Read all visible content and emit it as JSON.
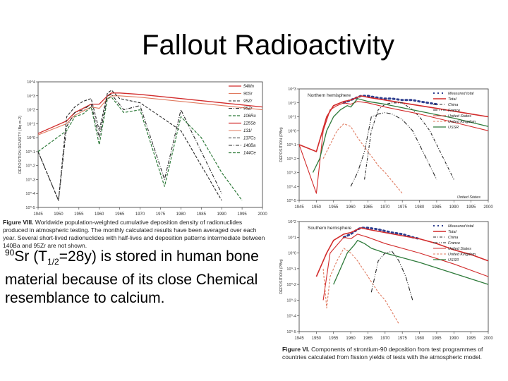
{
  "slide": {
    "title": "Fallout Radioactivity",
    "body_iso": "90",
    "body_p1": "Sr (T",
    "body_sub": "1/2",
    "body_p2": "=28y) is stored in human bone material because of its close Chemical resemblance to calcium."
  },
  "colors": {
    "red": "#d22b2b",
    "dark": "#2a2a2a",
    "green": "#2e7a3a",
    "salmon": "#e07a5f",
    "blue": "#2f3f8f"
  },
  "chart_data": [
    {
      "type": "line",
      "ylabel": "DEPOSITION DENSITY (Bq m-2)",
      "x_ticks": [
        "1945",
        "1950",
        "1955",
        "1960",
        "1965",
        "1970",
        "1975",
        "1980",
        "1985",
        "1990",
        "1995",
        "2000"
      ],
      "y_ticks": [
        "10^4",
        "10^3",
        "10^2",
        "10^1",
        "10^0",
        "10^-1",
        "10^-2",
        "10^-3",
        "10^-4",
        "10^-5"
      ],
      "legend": [
        "54Mn",
        "90Sr",
        "95Zr",
        "95Zr",
        "106Ru",
        "125Sb",
        "131I",
        "137Cs",
        "140Ba",
        "144Ce"
      ],
      "caption_label": "Figure VIII.",
      "caption_text": "Worldwide population-weighted cumulative deposition density of radionuclides produced in atmospheric testing. The monthly calculated results have been averaged over each year. Several short-lived radionuclides with half-lives and deposition patterns intermediate between 140Ba and 95Zr are not shown.",
      "series": [
        {
          "x": [
            1945,
            1952,
            1954,
            1956,
            1958,
            1960,
            1962,
            1963,
            1965,
            1970,
            1980,
            1990,
            2000
          ],
          "y": [
            0.3,
            1.2,
            1.8,
            2.1,
            2.4,
            2.4,
            3.0,
            3.2,
            3.2,
            3.1,
            2.8,
            2.5,
            2.2
          ]
        },
        {
          "x": [
            1945,
            1952,
            1954,
            1956,
            1958,
            1960,
            1962,
            1963,
            1965,
            1970,
            1980,
            1990,
            2000
          ],
          "y": [
            0.2,
            1.0,
            1.6,
            1.9,
            2.2,
            2.1,
            2.8,
            3.0,
            3.0,
            2.9,
            2.6,
            2.3,
            2.0
          ]
        },
        {
          "x": [
            1945,
            1950,
            1952,
            1954,
            1956,
            1958,
            1960,
            1962,
            1963,
            1965,
            1970,
            1975,
            1980,
            1990
          ],
          "y": [
            -1,
            -4.5,
            1.5,
            2.2,
            2.6,
            2.8,
            0.5,
            3.2,
            3.4,
            2.8,
            2.5,
            1.5,
            0.5,
            -4.5
          ]
        },
        {
          "x": [
            1945,
            1950,
            1952,
            1954,
            1956,
            1958,
            1960,
            1962,
            1963,
            1966,
            1970,
            1976,
            1980,
            1985,
            1990
          ],
          "y": [
            -1,
            -4.5,
            0.8,
            1.8,
            2.0,
            2.4,
            0.0,
            3.0,
            3.1,
            2.0,
            2.3,
            -3.0,
            2.0,
            -1.0,
            -4.0
          ]
        },
        {
          "x": [
            1945,
            1952,
            1954,
            1956,
            1958,
            1960,
            1962,
            1963,
            1966,
            1970,
            1976,
            1980,
            1985,
            1990,
            1995
          ],
          "y": [
            -1,
            0.5,
            1.5,
            1.7,
            2.2,
            -0.5,
            2.8,
            2.9,
            1.8,
            2.0,
            -3.5,
            1.5,
            0.0,
            -2.5,
            -4.5
          ]
        }
      ]
    },
    {
      "type": "line",
      "panel": "Northern hemisphere",
      "ylabel": "DEPOSITION (PBq)",
      "x_ticks": [
        "1945",
        "1950",
        "1955",
        "1960",
        "1965",
        "1970",
        "1975",
        "1980",
        "1985",
        "1990",
        "1995",
        "2000"
      ],
      "y_ticks": [
        "10^3",
        "10^2",
        "10^1",
        "10^0",
        "10^-1",
        "10^-2",
        "10^-3",
        "10^-4",
        "10^-5"
      ],
      "legend": [
        "Measured total",
        "Total",
        "China",
        "France",
        "United States",
        "United Kingdom",
        "USSR"
      ],
      "annotation": "United States",
      "series": [
        {
          "name": "Measured total",
          "x": [
            1958,
            1960,
            1962,
            1963,
            1965,
            1967,
            1970,
            1972,
            1975,
            1978,
            1980,
            1985
          ],
          "y": [
            2.0,
            2.2,
            2.4,
            2.5,
            2.5,
            2.4,
            2.3,
            2.3,
            2.2,
            2.2,
            2.1,
            1.9
          ]
        },
        {
          "name": "Total",
          "x": [
            1945,
            1950,
            1953,
            1955,
            1958,
            1960,
            1962,
            1963,
            1965,
            1970,
            1975,
            1980,
            1985,
            1990,
            1995,
            2000
          ],
          "y": [
            -1,
            -1.5,
            1.0,
            1.8,
            2.1,
            2.2,
            2.4,
            2.5,
            2.4,
            2.2,
            2.0,
            1.8,
            1.6,
            1.4,
            1.2,
            1.0
          ]
        },
        {
          "name": "China",
          "x": [
            1964,
            1966,
            1968,
            1970,
            1972,
            1975,
            1978,
            1980,
            1983,
            1986,
            1990
          ],
          "y": [
            -3.5,
            0.0,
            1.5,
            1.9,
            2.0,
            2.0,
            1.5,
            1.0,
            0.0,
            -1.5,
            -3.5
          ]
        },
        {
          "name": "France",
          "x": [
            1960,
            1962,
            1964,
            1966,
            1968,
            1970,
            1972,
            1975,
            1978,
            1980,
            1985
          ],
          "y": [
            -4.0,
            -3.0,
            -1.5,
            1.0,
            1.2,
            1.3,
            1.2,
            0.8,
            0.0,
            -1.0,
            -3.5
          ]
        },
        {
          "name": "United States",
          "x": [
            1945,
            1950,
            1952,
            1954,
            1956,
            1958,
            1960,
            1962,
            1965,
            1970,
            1980,
            1990,
            2000
          ],
          "y": [
            -1.0,
            -4.5,
            0.0,
            1.5,
            1.8,
            2.0,
            1.9,
            2.1,
            2.0,
            1.7,
            1.2,
            0.6,
            0.0
          ]
        },
        {
          "name": "United Kingdom",
          "x": [
            1952,
            1954,
            1956,
            1958,
            1960,
            1962,
            1965,
            1968,
            1970,
            1975
          ],
          "y": [
            -2.0,
            -1.0,
            0.0,
            0.5,
            0.3,
            -0.5,
            -1.5,
            -2.5,
            -3.0,
            -4.5
          ]
        },
        {
          "name": "USSR",
          "x": [
            1949,
            1951,
            1953,
            1955,
            1957,
            1959,
            1960,
            1962,
            1965,
            1970,
            1980,
            1990,
            2000
          ],
          "y": [
            -3.0,
            -2.0,
            0.0,
            1.0,
            1.5,
            1.8,
            1.7,
            2.3,
            2.1,
            1.9,
            1.4,
            0.9,
            0.3
          ]
        }
      ]
    },
    {
      "type": "line",
      "panel": "Southern hemisphere",
      "ylabel": "DEPOSITION (PBq)",
      "x_ticks": [
        "1945",
        "1950",
        "1955",
        "1960",
        "1965",
        "1970",
        "1975",
        "1980",
        "1985",
        "1990",
        "1995",
        "2000"
      ],
      "y_ticks": [
        "10^2",
        "10^1",
        "10^0",
        "10^-1",
        "10^-2",
        "10^-3",
        "10^-4",
        "10^-5"
      ],
      "legend": [
        "Measured total",
        "Total",
        "China",
        "France",
        "United States",
        "United Kingdom",
        "USSR"
      ],
      "caption_label": "Figure VI.",
      "caption_text": "Components of strontium-90 deposition from test programmes of countries calculated from fission yields of tests with the atmospheric model.",
      "series": [
        {
          "name": "Measured total",
          "x": [
            1958,
            1960,
            1962,
            1963,
            1965,
            1968,
            1970,
            1972,
            1975,
            1978,
            1980
          ],
          "y": [
            1.0,
            1.2,
            1.5,
            1.6,
            1.6,
            1.5,
            1.4,
            1.3,
            1.2,
            1.0,
            0.9
          ]
        },
        {
          "name": "Total",
          "x": [
            1950,
            1953,
            1955,
            1958,
            1960,
            1962,
            1963,
            1965,
            1970,
            1975,
            1980,
            1985,
            1990,
            1995,
            2000
          ],
          "y": [
            -1.5,
            0.0,
            0.8,
            1.2,
            1.3,
            1.5,
            1.6,
            1.5,
            1.3,
            1.1,
            0.9,
            0.6,
            0.2,
            -0.1,
            -0.5
          ]
        },
        {
          "name": "United States",
          "x": [
            1952,
            1954,
            1956,
            1958,
            1960,
            1962,
            1965,
            1970,
            1980,
            1990,
            2000
          ],
          "y": [
            -3.0,
            0.0,
            0.5,
            1.0,
            0.9,
            1.2,
            1.0,
            0.6,
            0.0,
            -0.7,
            -1.5
          ]
        },
        {
          "name": "United Kingdom",
          "x": [
            1952,
            1953,
            1954,
            1956,
            1958,
            1960,
            1962,
            1965,
            1968,
            1970,
            1974
          ],
          "y": [
            -1.0,
            -3.5,
            -1.5,
            -0.5,
            0.3,
            0.0,
            -0.5,
            -1.5,
            -2.5,
            -3.0,
            -4.5
          ]
        },
        {
          "name": "USSR",
          "x": [
            1955,
            1957,
            1959,
            1961,
            1962,
            1964,
            1966,
            1970,
            1980,
            1990,
            2000
          ],
          "y": [
            -2.0,
            -1.0,
            0.0,
            0.5,
            0.8,
            0.6,
            0.3,
            0.0,
            -0.6,
            -1.3,
            -2.0
          ]
        },
        {
          "name": "France",
          "x": [
            1966,
            1968,
            1970,
            1972,
            1974,
            1976,
            1978
          ],
          "y": [
            -2.5,
            -0.5,
            0.0,
            0.1,
            -0.5,
            -1.5,
            -3.0
          ]
        }
      ]
    }
  ]
}
